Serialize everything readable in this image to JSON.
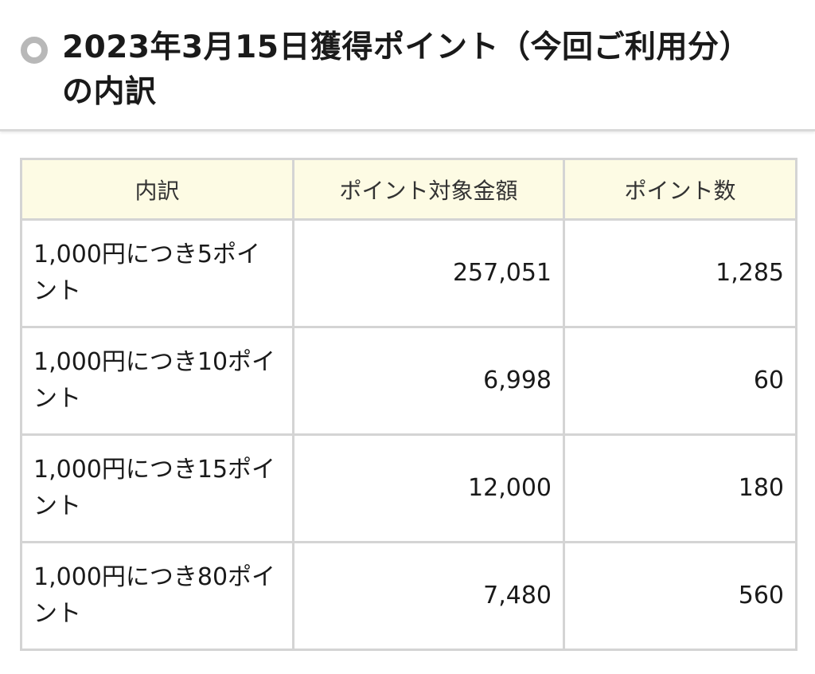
{
  "header": {
    "title": "2023年3月15日獲得ポイント（今回ご利用分）の内訳"
  },
  "table": {
    "columns": [
      "内訳",
      "ポイント対象金額",
      "ポイント数"
    ],
    "rows": [
      {
        "name": "1,000円につき5ポイント",
        "amount": "257,051",
        "points": "1,285"
      },
      {
        "name": "1,000円につき10ポイント",
        "amount": "6,998",
        "points": "60"
      },
      {
        "name": "1,000円につき15ポイント",
        "amount": "12,000",
        "points": "180"
      },
      {
        "name": "1,000円につき80ポイント",
        "amount": "7,480",
        "points": "560"
      }
    ]
  }
}
